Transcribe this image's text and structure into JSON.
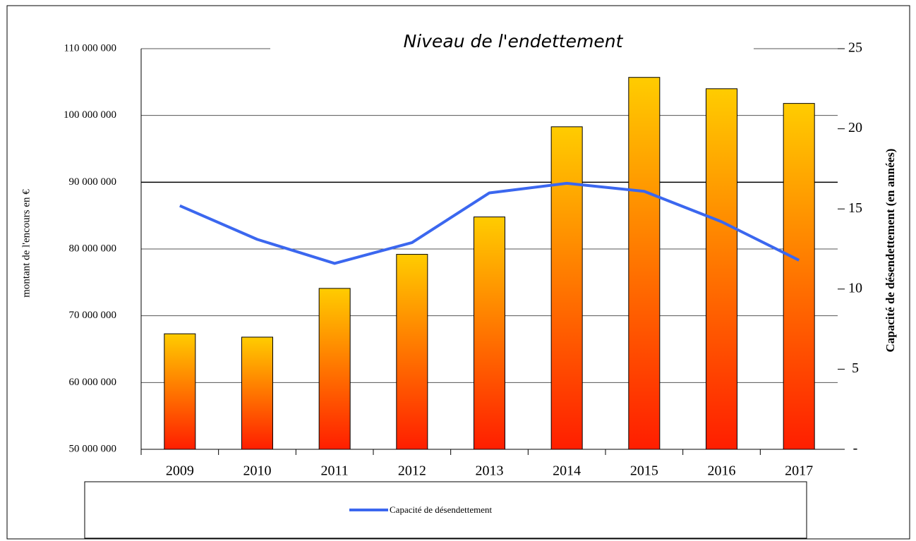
{
  "chart_data": {
    "type": "bar",
    "title": "Niveau de l'endettement",
    "y_label": "montant de l'encours en €",
    "y2_label": "Capacité de désendettement (en années)",
    "categories": [
      "2009",
      "2010",
      "2011",
      "2012",
      "2013",
      "2014",
      "2015",
      "2016",
      "2017"
    ],
    "values": [
      67300000,
      66800000,
      74100000,
      79200000,
      84800000,
      98300000,
      105700000,
      104000000,
      101800000
    ],
    "color_top": "#ffcc00",
    "color_bottom": "#ff1e00",
    "series": [
      {
        "name": "Capacité de désendettement",
        "color": "#3b67ef",
        "axis": "y2",
        "type": "line",
        "values": [
          15.2,
          13.1,
          11.6,
          12.9,
          16.0,
          16.6,
          16.1,
          14.2,
          11.8
        ]
      }
    ],
    "ylim": [
      50000000,
      110000000
    ],
    "yticks": [
      {
        "value": 50000000,
        "label": "50 000 000"
      },
      {
        "value": 60000000,
        "label": "60 000 000"
      },
      {
        "value": 70000000,
        "label": "70 000 000"
      },
      {
        "value": 80000000,
        "label": "80 000 000"
      },
      {
        "value": 90000000,
        "label": "90 000 000"
      },
      {
        "value": 100000000,
        "label": "100 000 000"
      },
      {
        "value": 110000000,
        "label": "110 000 000"
      }
    ],
    "y2lim": [
      0,
      25
    ],
    "y2ticks": [
      {
        "value": 0,
        "label": "-"
      },
      5,
      10,
      15,
      20,
      25
    ],
    "grid": true,
    "legend": "bottom"
  }
}
